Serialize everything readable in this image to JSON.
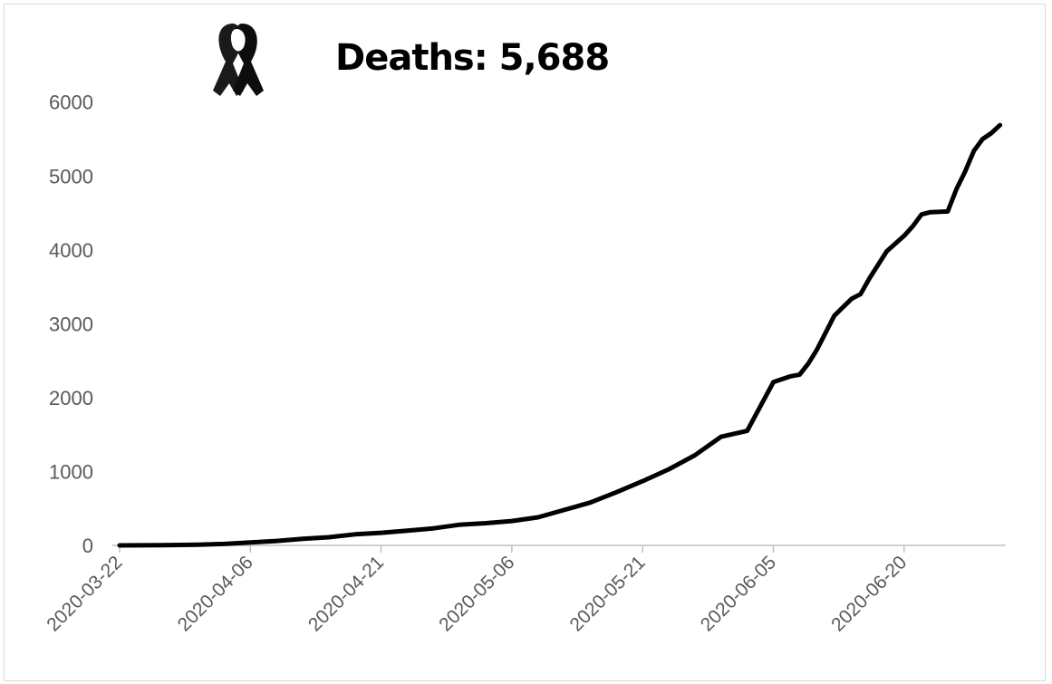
{
  "chart_data": {
    "type": "line",
    "title": "Deaths: 5,688",
    "title_icon": "black-ribbon-icon",
    "xlabel": "",
    "ylabel": "",
    "ylim": [
      0,
      6000
    ],
    "yticks": [
      "0",
      "1000",
      "2000",
      "3000",
      "4000",
      "5000",
      "6000"
    ],
    "xticks": [
      "2020-03-22",
      "2020-04-06",
      "2020-04-21",
      "2020-05-06",
      "2020-05-21",
      "2020-06-05",
      "2020-06-20"
    ],
    "grid": false,
    "line_color": "#000000",
    "series": [
      {
        "x": [
          "2020-03-22",
          "2020-03-27",
          "2020-03-31",
          "2020-04-03",
          "2020-04-06",
          "2020-04-09",
          "2020-04-12",
          "2020-04-15",
          "2020-04-18",
          "2020-04-21",
          "2020-04-24",
          "2020-04-27",
          "2020-04-30",
          "2020-05-03",
          "2020-05-06",
          "2020-05-09",
          "2020-05-12",
          "2020-05-15",
          "2020-05-18",
          "2020-05-21",
          "2020-05-24",
          "2020-05-27",
          "2020-05-30",
          "2020-06-02",
          "2020-06-05",
          "2020-06-07",
          "2020-06-08",
          "2020-06-09",
          "2020-06-10",
          "2020-06-12",
          "2020-06-14",
          "2020-06-15",
          "2020-06-16",
          "2020-06-18",
          "2020-06-20",
          "2020-06-21",
          "2020-06-22",
          "2020-06-23",
          "2020-06-25",
          "2020-06-26",
          "2020-06-27",
          "2020-06-28",
          "2020-06-29",
          "2020-06-30",
          "2020-07-01"
        ],
        "y": [
          0,
          2,
          10,
          20,
          40,
          60,
          90,
          110,
          150,
          170,
          200,
          230,
          280,
          300,
          330,
          380,
          480,
          580,
          720,
          870,
          1030,
          1220,
          1470,
          1550,
          2210,
          2290,
          2310,
          2460,
          2650,
          3110,
          3340,
          3400,
          3610,
          3980,
          4190,
          4320,
          4480,
          4510,
          4520,
          4820,
          5060,
          5340,
          5500,
          5580,
          5688
        ]
      }
    ]
  }
}
